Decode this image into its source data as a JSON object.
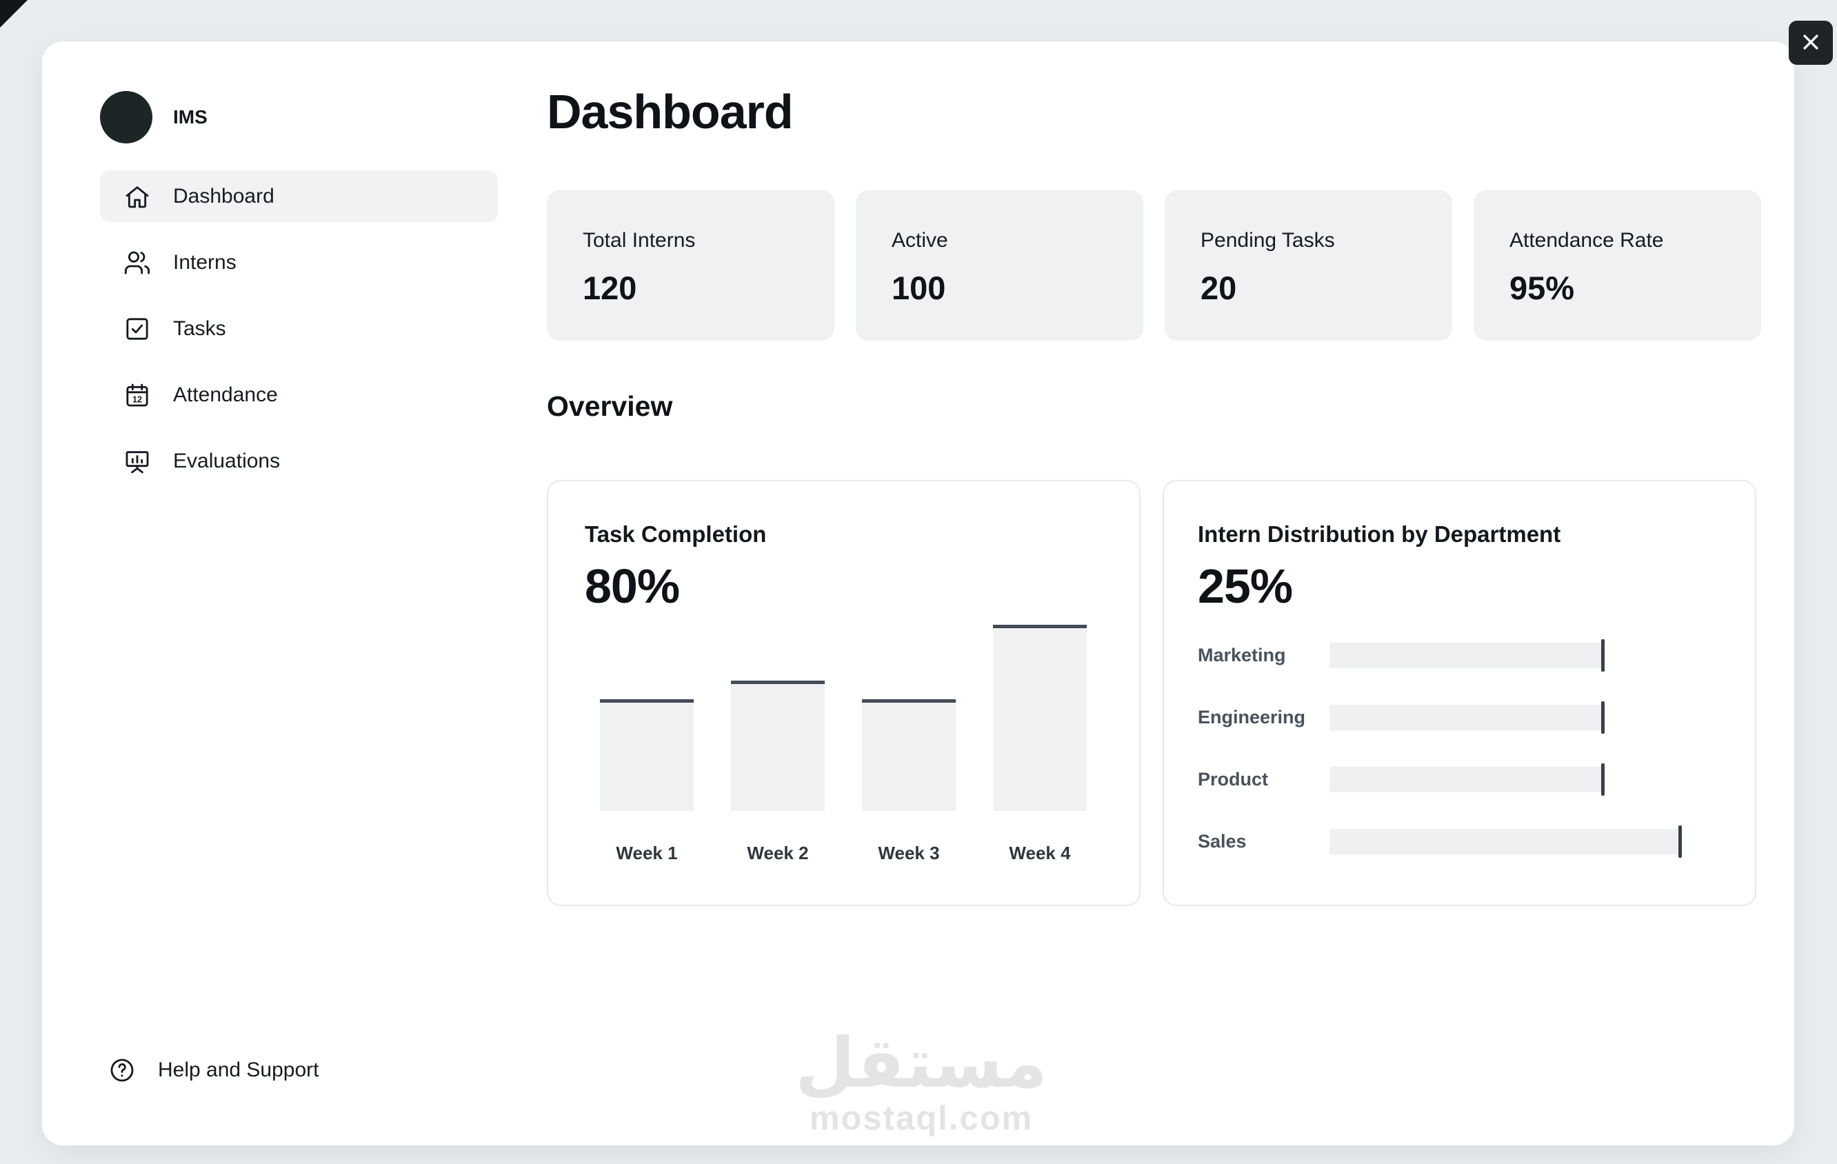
{
  "window": {
    "close_icon": "close-icon"
  },
  "sidebar": {
    "logo_text": "IMS",
    "items": [
      {
        "label": "Dashboard",
        "icon": "home-icon",
        "active": true
      },
      {
        "label": "Interns",
        "icon": "users-icon",
        "active": false
      },
      {
        "label": "Tasks",
        "icon": "task-check-icon",
        "active": false
      },
      {
        "label": "Attendance",
        "icon": "calendar-icon",
        "active": false
      },
      {
        "label": "Evaluations",
        "icon": "presentation-icon",
        "active": false
      }
    ],
    "footer": {
      "label": "Help and Support",
      "icon": "help-icon"
    }
  },
  "header": {
    "title": "Dashboard"
  },
  "stats": [
    {
      "label": "Total Interns",
      "value": "120"
    },
    {
      "label": "Active",
      "value": "100"
    },
    {
      "label": "Pending Tasks",
      "value": "20"
    },
    {
      "label": "Attendance Rate",
      "value": "95%"
    }
  ],
  "overview": {
    "heading": "Overview"
  },
  "charts": {
    "task_completion": {
      "type": "bar",
      "title": "Task Completion",
      "value": "80%",
      "categories": [
        "Week 1",
        "Week 2",
        "Week 3",
        "Week 4"
      ],
      "values": [
        60,
        70,
        60,
        100
      ]
    },
    "intern_distribution": {
      "type": "bar-horizontal",
      "title": "Intern Distribution by Department",
      "value": "25%",
      "categories": [
        "Marketing",
        "Engineering",
        "Product",
        "Sales"
      ],
      "values": [
        25,
        25,
        25,
        32
      ]
    }
  },
  "watermark": {
    "line1": "مستقل",
    "line2": "mostaql.com"
  },
  "colors": {
    "page_bg": "#e9edf0",
    "window_bg": "#ffffff",
    "tile_bg": "#f0f1f3",
    "text": "#15191e",
    "bar_line": "#434c56",
    "close_bg": "#1f2428"
  }
}
